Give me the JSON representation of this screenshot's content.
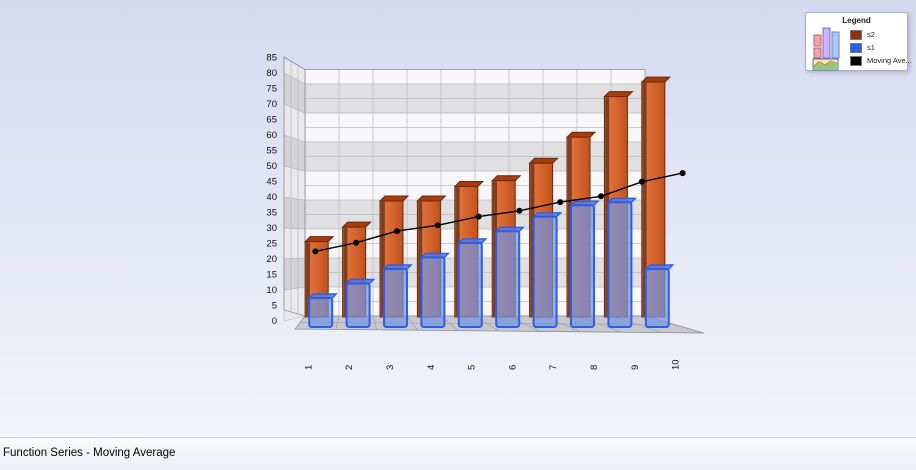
{
  "title": {
    "text": "Function Series - Moving Average"
  },
  "legend": {
    "title": "Legend",
    "items": [
      {
        "label": "s2",
        "color": "#9a2d0b"
      },
      {
        "label": "s1",
        "color": "#2b5dee"
      },
      {
        "label": "Moving Ave...",
        "color": "#000000"
      }
    ]
  },
  "yaxis": {
    "ticks": [
      "0",
      "5",
      "10",
      "15",
      "20",
      "25",
      "30",
      "35",
      "40",
      "45",
      "50",
      "55",
      "60",
      "65",
      "70",
      "75",
      "80",
      "85"
    ]
  },
  "xaxis": {
    "labels": [
      "1",
      "2",
      "3",
      "4",
      "5",
      "6",
      "7",
      "8",
      "9",
      "10"
    ]
  },
  "colors": {
    "background_top": "#d6daf1",
    "background_bottom": "#f2f4fb",
    "wall_band_light": "#f7f7f9",
    "wall_band_dark": "#e0e0e3",
    "floor": "#c9c9cd",
    "s2_bar": "#d9622a",
    "s1_bar": "#6c93e6",
    "line": "#000000"
  },
  "chart_data": {
    "type": "bar",
    "subtype": "3d-column-with-line",
    "title": "Function Series - Moving Average",
    "categories": [
      "1",
      "2",
      "3",
      "4",
      "5",
      "6",
      "7",
      "8",
      "9",
      "10"
    ],
    "series": [
      {
        "name": "s2",
        "type": "column3d",
        "color": "#d9622a",
        "values": [
          26,
          31,
          40,
          40,
          45,
          47,
          53,
          62,
          76,
          81
        ]
      },
      {
        "name": "s1",
        "type": "column3d",
        "color": "#6c93e6",
        "values": [
          10,
          15,
          20,
          24,
          29,
          33,
          38,
          42,
          43,
          20
        ]
      },
      {
        "name": "Moving Ave...",
        "type": "line",
        "color": "#000000",
        "values": [
          24,
          27,
          31,
          33,
          36,
          38,
          41,
          43,
          48,
          51
        ]
      }
    ],
    "xlabel": "",
    "ylabel": "",
    "ylim": [
      0,
      85
    ],
    "ytick_step": 5,
    "grid": true,
    "legend_position": "top-right"
  }
}
